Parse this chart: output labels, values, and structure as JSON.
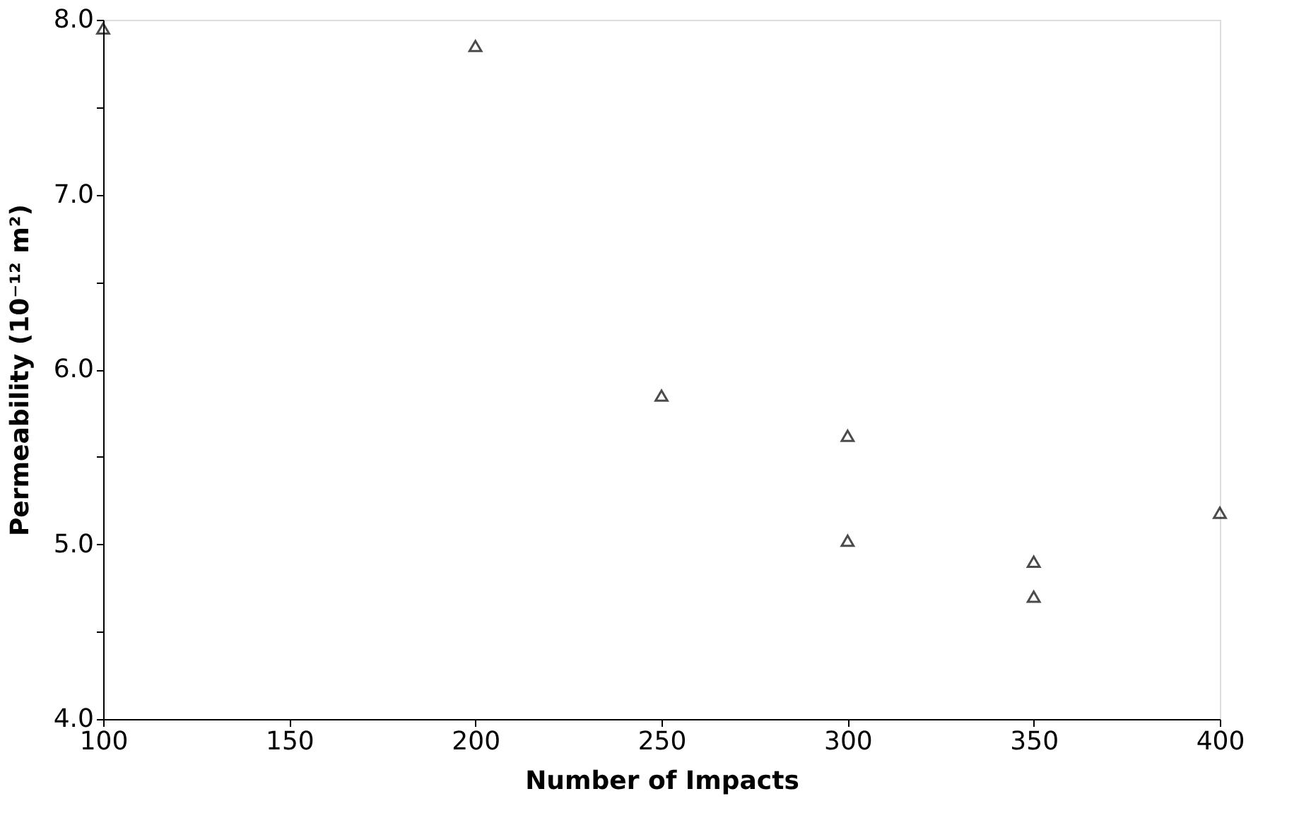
{
  "chart_data": {
    "type": "scatter",
    "xlabel": "Number of Impacts",
    "ylabel": "Permeability (10⁻¹² m²)",
    "x": [
      100,
      200,
      250,
      300,
      300,
      350,
      350,
      400
    ],
    "series": [
      {
        "color": "#000000",
        "values": [
          7.95,
          7.85,
          5.85,
          5.62,
          5.02,
          4.9,
          4.7,
          5.18
        ]
      }
    ],
    "marker": "triangle",
    "grid": false,
    "legend": false,
    "xlim": [
      100,
      400
    ],
    "xticks": [
      100,
      150,
      200,
      250,
      300,
      350,
      400
    ],
    "ylim": [
      4,
      8
    ],
    "yticks": [
      {
        "value": 4,
        "label": "4.0"
      },
      {
        "value": 4.5,
        "label": null
      },
      {
        "value": 5,
        "label": "5.0"
      },
      {
        "value": 5.5,
        "label": null
      },
      {
        "value": 6,
        "label": "6.0"
      },
      {
        "value": 6.5,
        "label": null
      },
      {
        "value": 7,
        "label": "7.0"
      },
      {
        "value": 7.5,
        "label": null
      },
      {
        "value": 8,
        "label": "8.0"
      }
    ]
  }
}
